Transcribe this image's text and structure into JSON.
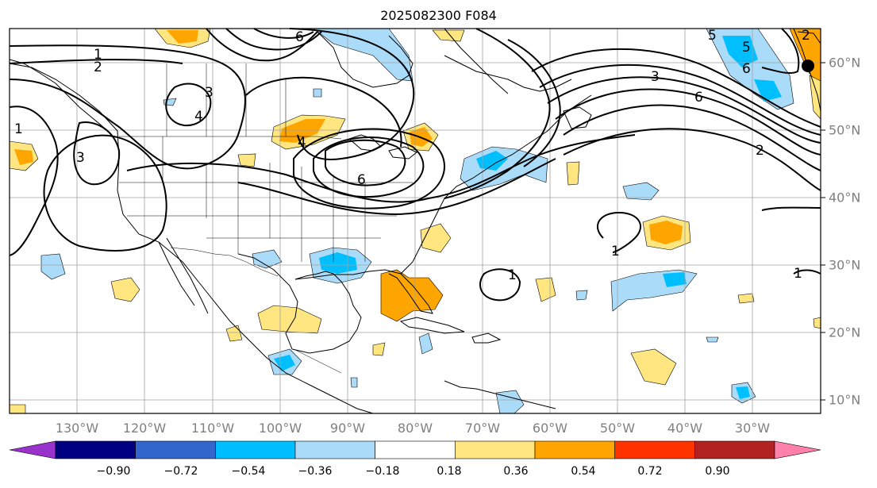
{
  "title": "2025082300 F084",
  "map": {
    "lon_labels": [
      "130°W",
      "120°W",
      "110°W",
      "100°W",
      "90°W",
      "80°W",
      "70°W",
      "60°W",
      "50°W",
      "40°W",
      "30°W"
    ],
    "lat_labels": [
      "60°N",
      "50°N",
      "40°N",
      "30°N",
      "20°N",
      "10°N"
    ],
    "contour_labels": [
      "1",
      "2",
      "3",
      "4",
      "5",
      "6"
    ],
    "contour_color": "#000000",
    "gridlines": true
  },
  "colorbar": {
    "ticks": [
      "−0.90",
      "−0.72",
      "−0.54",
      "−0.36",
      "−0.18",
      "0.18",
      "0.36",
      "0.54",
      "0.72",
      "0.90"
    ],
    "colors": [
      "#9933cc",
      "#000080",
      "#3366cc",
      "#00bfff",
      "#aadcfa",
      "#ffffff",
      "#ffe680",
      "#ffa500",
      "#ff3300",
      "#b22222",
      "#ff80aa"
    ],
    "extend": "both"
  }
}
